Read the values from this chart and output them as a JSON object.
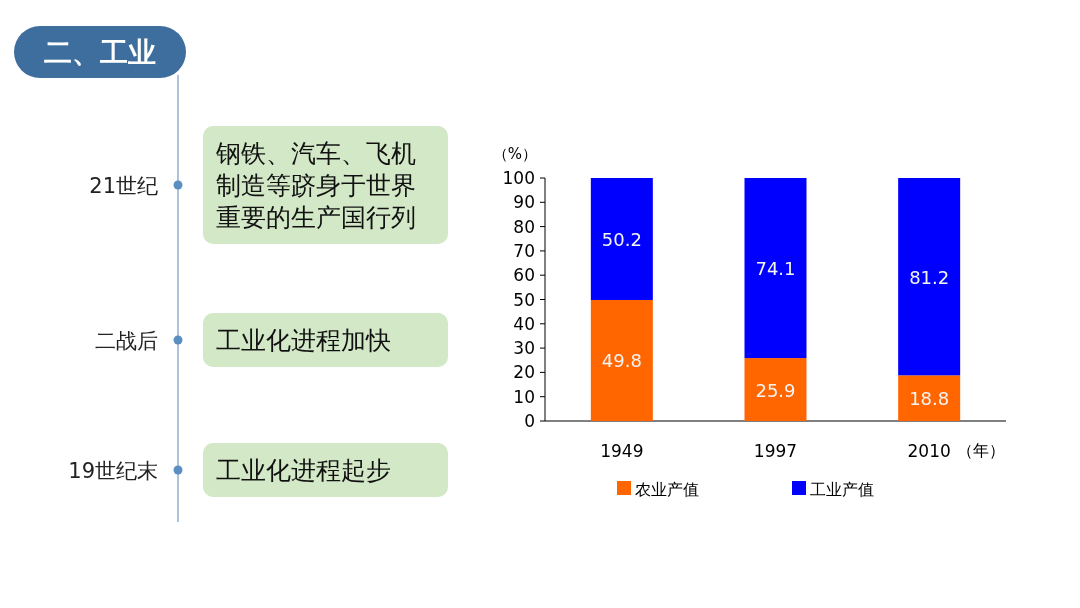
{
  "chart_data": [
    {
      "type": "other",
      "title": "二、工业",
      "annotations": [
        "21世纪",
        "钢铁、汽车、飞机制造等跻身于世界重要的生产国行列",
        "二战后",
        "工业化进程加快",
        "19世纪末",
        "工业化进程起步"
      ]
    },
    {
      "type": "bar",
      "stacked": true,
      "categories": [
        "1949",
        "1997",
        "2010"
      ],
      "xlabel": "（年）",
      "ylabel": "（%）",
      "ylim": [
        0,
        100
      ],
      "yticks": [
        0,
        10,
        20,
        30,
        40,
        50,
        60,
        70,
        80,
        90,
        100
      ],
      "data_labels": true,
      "legend": "bottom",
      "series": [
        {
          "name": "农业产值",
          "color": "#ff6600",
          "values": [
            49.8,
            25.9,
            18.8
          ]
        },
        {
          "name": "工业产值",
          "color": "#0000ff",
          "values": [
            50.2,
            74.1,
            81.2
          ]
        }
      ]
    }
  ]
}
